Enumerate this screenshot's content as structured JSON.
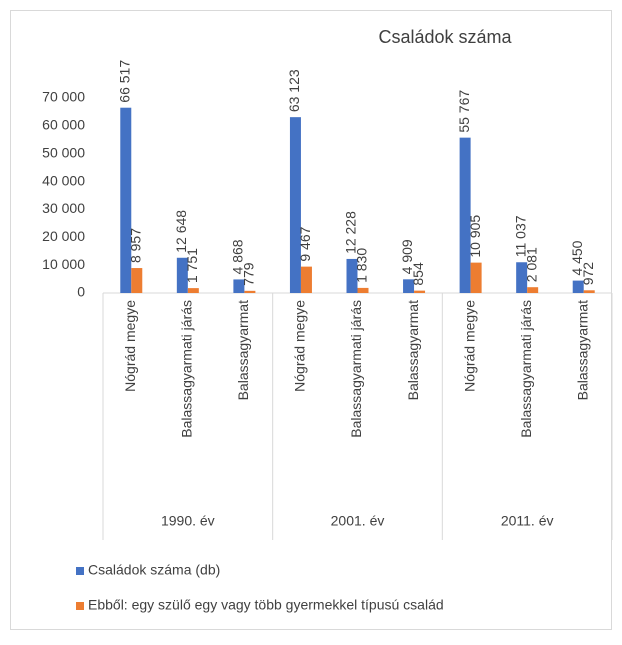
{
  "chart_data": {
    "type": "bar",
    "title": "Családok száma",
    "categories": [
      "Nógrád megye",
      "Balassagyarmati járás",
      "Balassagyarmat",
      "Nógrád megye",
      "Balassagyarmati járás",
      "Balassagyarmat",
      "Nógrád megye",
      "Balassagyarmati járás",
      "Balassagyarmat"
    ],
    "category_groups": [
      "1990. év",
      "2001. év",
      "2011. év"
    ],
    "series": [
      {
        "name": "Családok száma (db)",
        "color": "#4472c4",
        "values": [
          66517,
          12648,
          4868,
          63123,
          12228,
          4909,
          55767,
          11037,
          4450
        ],
        "value_labels": [
          "66 517",
          "12 648",
          "4 868",
          "63 123",
          "12 228",
          "4 909",
          "55 767",
          "11 037",
          "4 450"
        ]
      },
      {
        "name": "Ebből: egy szülő egy vagy több gyermekkel típusú család",
        "color": "#ed7d31",
        "values": [
          8957,
          1751,
          779,
          9467,
          1830,
          854,
          10905,
          2081,
          972
        ],
        "value_labels": [
          "8 957",
          "1 751",
          "779",
          "9 467",
          "1 830",
          "854",
          "10 905",
          "2 081",
          "972"
        ]
      }
    ],
    "ylim": [
      0,
      70000
    ],
    "yticks": [
      0,
      {
        "value": 10000,
        "label": "10 000"
      },
      {
        "value": 20000,
        "label": "20 000"
      },
      {
        "value": 30000,
        "label": "30 000"
      },
      {
        "value": 40000,
        "label": "40 000"
      },
      {
        "value": 50000,
        "label": "50 000"
      },
      {
        "value": 60000,
        "label": "60 000"
      },
      {
        "value": 70000,
        "label": "70 000"
      }
    ],
    "grid": false,
    "legend": "bottom"
  }
}
